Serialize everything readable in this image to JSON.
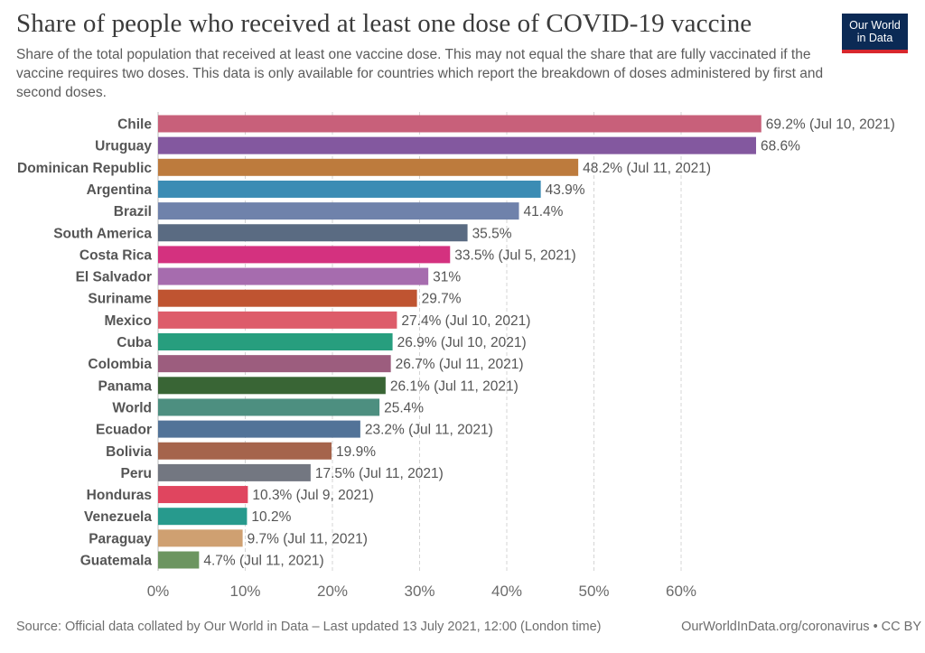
{
  "header": {
    "title": "Share of people who received at least one dose of COVID-19 vaccine",
    "subtitle": "Share of the total population that received at least one vaccine dose. This may not equal the share that are fully vaccinated if the vaccine requires two doses. This data is only available for countries which report the breakdown of doses administered by first and second doses.",
    "logo_line1": "Our World",
    "logo_line2": "in Data",
    "logo_colors": {
      "background": "#0b2a55",
      "stripe": "#d8272d"
    }
  },
  "footer": {
    "source": "Source: Official data collated by Our World in Data – Last updated 13 July 2021, 12:00 (London time)",
    "url": "OurWorldInData.org/coronavirus • CC BY"
  },
  "chart_data": {
    "type": "bar",
    "orientation": "horizontal",
    "xlim": [
      0,
      70
    ],
    "ticks": [
      "0%",
      "10%",
      "20%",
      "30%",
      "40%",
      "50%",
      "60%"
    ],
    "tick_values": [
      0,
      10,
      20,
      30,
      40,
      50,
      60
    ],
    "grid": true,
    "rows": [
      {
        "label": "Chile",
        "value": 69.2,
        "value_label": "69.2% (Jul 10, 2021)",
        "color": "#c8607a"
      },
      {
        "label": "Uruguay",
        "value": 68.6,
        "value_label": "68.6%",
        "color": "#83589f"
      },
      {
        "label": "Dominican Republic",
        "value": 48.2,
        "value_label": "48.2% (Jul 11, 2021)",
        "color": "#bd7b3d"
      },
      {
        "label": "Argentina",
        "value": 43.9,
        "value_label": "43.9%",
        "color": "#3b8cb4"
      },
      {
        "label": "Brazil",
        "value": 41.4,
        "value_label": "41.4%",
        "color": "#6f82ab"
      },
      {
        "label": "South America",
        "value": 35.5,
        "value_label": "35.5%",
        "color": "#5a6b82"
      },
      {
        "label": "Costa Rica",
        "value": 33.5,
        "value_label": "33.5% (Jul 5, 2021)",
        "color": "#d4317f"
      },
      {
        "label": "El Salvador",
        "value": 31,
        "value_label": "31%",
        "color": "#a66cae"
      },
      {
        "label": "Suriname",
        "value": 29.7,
        "value_label": "29.7%",
        "color": "#bf5431"
      },
      {
        "label": "Mexico",
        "value": 27.4,
        "value_label": "27.4% (Jul 10, 2021)",
        "color": "#dd5c6a"
      },
      {
        "label": "Cuba",
        "value": 26.9,
        "value_label": "26.9% (Jul 10, 2021)",
        "color": "#279e7e"
      },
      {
        "label": "Colombia",
        "value": 26.7,
        "value_label": "26.7% (Jul 11, 2021)",
        "color": "#9c5d7e"
      },
      {
        "label": "Panama",
        "value": 26.1,
        "value_label": "26.1% (Jul 11, 2021)",
        "color": "#396535"
      },
      {
        "label": "World",
        "value": 25.4,
        "value_label": "25.4%",
        "color": "#4d8f80"
      },
      {
        "label": "Ecuador",
        "value": 23.2,
        "value_label": "23.2% (Jul 11, 2021)",
        "color": "#527398"
      },
      {
        "label": "Bolivia",
        "value": 19.9,
        "value_label": "19.9%",
        "color": "#a5644c"
      },
      {
        "label": "Peru",
        "value": 17.5,
        "value_label": "17.5% (Jul 11, 2021)",
        "color": "#737781"
      },
      {
        "label": "Honduras",
        "value": 10.3,
        "value_label": "10.3% (Jul 9, 2021)",
        "color": "#e0455f"
      },
      {
        "label": "Venezuela",
        "value": 10.2,
        "value_label": "10.2%",
        "color": "#279a8d"
      },
      {
        "label": "Paraguay",
        "value": 9.7,
        "value_label": "9.7% (Jul 11, 2021)",
        "color": "#cfa071"
      },
      {
        "label": "Guatemala",
        "value": 4.7,
        "value_label": "4.7% (Jul 11, 2021)",
        "color": "#6c9560"
      }
    ]
  }
}
